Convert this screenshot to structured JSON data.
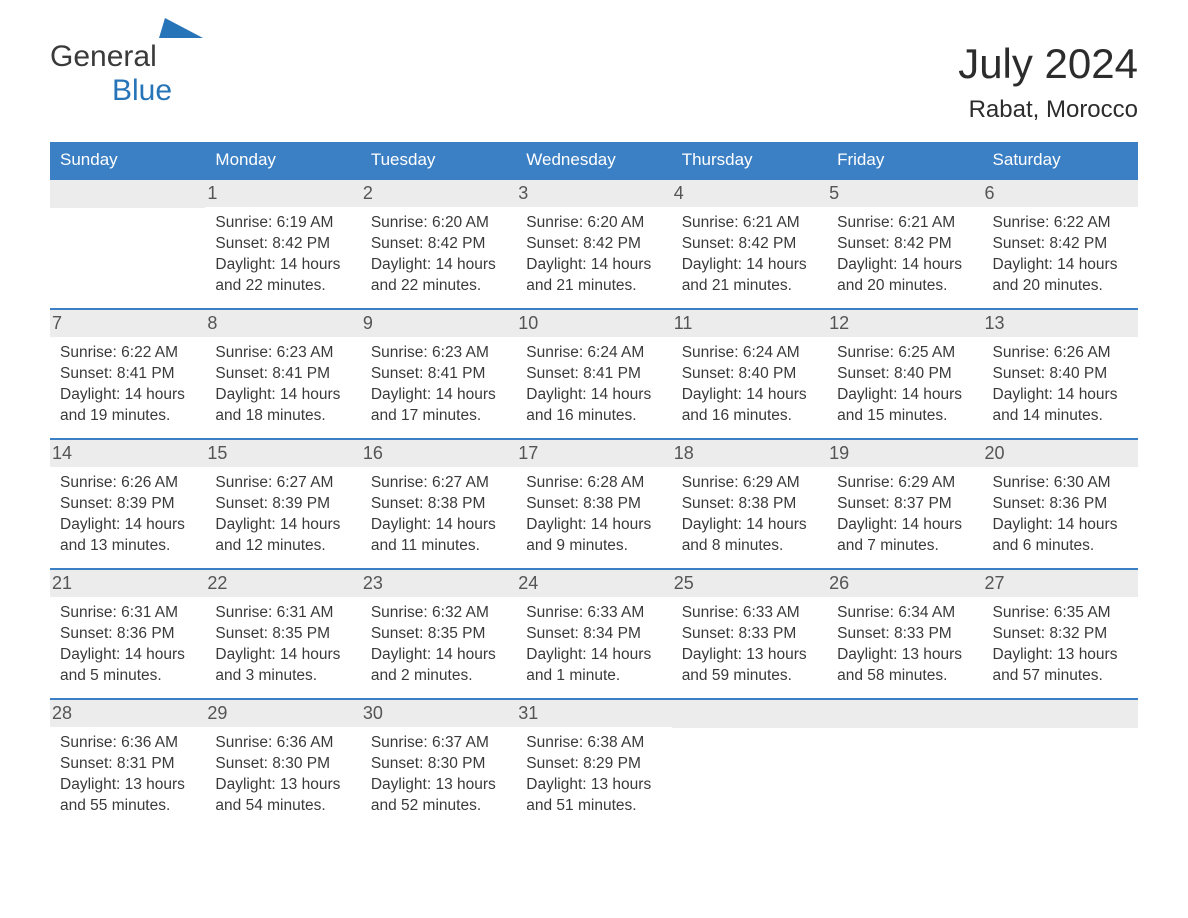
{
  "logo": {
    "text1": "General",
    "text2": "Blue"
  },
  "title": "July 2024",
  "location": "Rabat, Morocco",
  "header_bg": "#3b7fc4",
  "header_fg": "#ffffff",
  "daynum_bg": "#ececec",
  "weekdays": [
    "Sunday",
    "Monday",
    "Tuesday",
    "Wednesday",
    "Thursday",
    "Friday",
    "Saturday"
  ],
  "weeks": [
    [
      {
        "day": "",
        "sunrise": "",
        "sunset": "",
        "daylight": ""
      },
      {
        "day": "1",
        "sunrise": "Sunrise: 6:19 AM",
        "sunset": "Sunset: 8:42 PM",
        "daylight": "Daylight: 14 hours and 22 minutes."
      },
      {
        "day": "2",
        "sunrise": "Sunrise: 6:20 AM",
        "sunset": "Sunset: 8:42 PM",
        "daylight": "Daylight: 14 hours and 22 minutes."
      },
      {
        "day": "3",
        "sunrise": "Sunrise: 6:20 AM",
        "sunset": "Sunset: 8:42 PM",
        "daylight": "Daylight: 14 hours and 21 minutes."
      },
      {
        "day": "4",
        "sunrise": "Sunrise: 6:21 AM",
        "sunset": "Sunset: 8:42 PM",
        "daylight": "Daylight: 14 hours and 21 minutes."
      },
      {
        "day": "5",
        "sunrise": "Sunrise: 6:21 AM",
        "sunset": "Sunset: 8:42 PM",
        "daylight": "Daylight: 14 hours and 20 minutes."
      },
      {
        "day": "6",
        "sunrise": "Sunrise: 6:22 AM",
        "sunset": "Sunset: 8:42 PM",
        "daylight": "Daylight: 14 hours and 20 minutes."
      }
    ],
    [
      {
        "day": "7",
        "sunrise": "Sunrise: 6:22 AM",
        "sunset": "Sunset: 8:41 PM",
        "daylight": "Daylight: 14 hours and 19 minutes."
      },
      {
        "day": "8",
        "sunrise": "Sunrise: 6:23 AM",
        "sunset": "Sunset: 8:41 PM",
        "daylight": "Daylight: 14 hours and 18 minutes."
      },
      {
        "day": "9",
        "sunrise": "Sunrise: 6:23 AM",
        "sunset": "Sunset: 8:41 PM",
        "daylight": "Daylight: 14 hours and 17 minutes."
      },
      {
        "day": "10",
        "sunrise": "Sunrise: 6:24 AM",
        "sunset": "Sunset: 8:41 PM",
        "daylight": "Daylight: 14 hours and 16 minutes."
      },
      {
        "day": "11",
        "sunrise": "Sunrise: 6:24 AM",
        "sunset": "Sunset: 8:40 PM",
        "daylight": "Daylight: 14 hours and 16 minutes."
      },
      {
        "day": "12",
        "sunrise": "Sunrise: 6:25 AM",
        "sunset": "Sunset: 8:40 PM",
        "daylight": "Daylight: 14 hours and 15 minutes."
      },
      {
        "day": "13",
        "sunrise": "Sunrise: 6:26 AM",
        "sunset": "Sunset: 8:40 PM",
        "daylight": "Daylight: 14 hours and 14 minutes."
      }
    ],
    [
      {
        "day": "14",
        "sunrise": "Sunrise: 6:26 AM",
        "sunset": "Sunset: 8:39 PM",
        "daylight": "Daylight: 14 hours and 13 minutes."
      },
      {
        "day": "15",
        "sunrise": "Sunrise: 6:27 AM",
        "sunset": "Sunset: 8:39 PM",
        "daylight": "Daylight: 14 hours and 12 minutes."
      },
      {
        "day": "16",
        "sunrise": "Sunrise: 6:27 AM",
        "sunset": "Sunset: 8:38 PM",
        "daylight": "Daylight: 14 hours and 11 minutes."
      },
      {
        "day": "17",
        "sunrise": "Sunrise: 6:28 AM",
        "sunset": "Sunset: 8:38 PM",
        "daylight": "Daylight: 14 hours and 9 minutes."
      },
      {
        "day": "18",
        "sunrise": "Sunrise: 6:29 AM",
        "sunset": "Sunset: 8:38 PM",
        "daylight": "Daylight: 14 hours and 8 minutes."
      },
      {
        "day": "19",
        "sunrise": "Sunrise: 6:29 AM",
        "sunset": "Sunset: 8:37 PM",
        "daylight": "Daylight: 14 hours and 7 minutes."
      },
      {
        "day": "20",
        "sunrise": "Sunrise: 6:30 AM",
        "sunset": "Sunset: 8:36 PM",
        "daylight": "Daylight: 14 hours and 6 minutes."
      }
    ],
    [
      {
        "day": "21",
        "sunrise": "Sunrise: 6:31 AM",
        "sunset": "Sunset: 8:36 PM",
        "daylight": "Daylight: 14 hours and 5 minutes."
      },
      {
        "day": "22",
        "sunrise": "Sunrise: 6:31 AM",
        "sunset": "Sunset: 8:35 PM",
        "daylight": "Daylight: 14 hours and 3 minutes."
      },
      {
        "day": "23",
        "sunrise": "Sunrise: 6:32 AM",
        "sunset": "Sunset: 8:35 PM",
        "daylight": "Daylight: 14 hours and 2 minutes."
      },
      {
        "day": "24",
        "sunrise": "Sunrise: 6:33 AM",
        "sunset": "Sunset: 8:34 PM",
        "daylight": "Daylight: 14 hours and 1 minute."
      },
      {
        "day": "25",
        "sunrise": "Sunrise: 6:33 AM",
        "sunset": "Sunset: 8:33 PM",
        "daylight": "Daylight: 13 hours and 59 minutes."
      },
      {
        "day": "26",
        "sunrise": "Sunrise: 6:34 AM",
        "sunset": "Sunset: 8:33 PM",
        "daylight": "Daylight: 13 hours and 58 minutes."
      },
      {
        "day": "27",
        "sunrise": "Sunrise: 6:35 AM",
        "sunset": "Sunset: 8:32 PM",
        "daylight": "Daylight: 13 hours and 57 minutes."
      }
    ],
    [
      {
        "day": "28",
        "sunrise": "Sunrise: 6:36 AM",
        "sunset": "Sunset: 8:31 PM",
        "daylight": "Daylight: 13 hours and 55 minutes."
      },
      {
        "day": "29",
        "sunrise": "Sunrise: 6:36 AM",
        "sunset": "Sunset: 8:30 PM",
        "daylight": "Daylight: 13 hours and 54 minutes."
      },
      {
        "day": "30",
        "sunrise": "Sunrise: 6:37 AM",
        "sunset": "Sunset: 8:30 PM",
        "daylight": "Daylight: 13 hours and 52 minutes."
      },
      {
        "day": "31",
        "sunrise": "Sunrise: 6:38 AM",
        "sunset": "Sunset: 8:29 PM",
        "daylight": "Daylight: 13 hours and 51 minutes."
      },
      {
        "day": "",
        "sunrise": "",
        "sunset": "",
        "daylight": ""
      },
      {
        "day": "",
        "sunrise": "",
        "sunset": "",
        "daylight": ""
      },
      {
        "day": "",
        "sunrise": "",
        "sunset": "",
        "daylight": ""
      }
    ]
  ]
}
